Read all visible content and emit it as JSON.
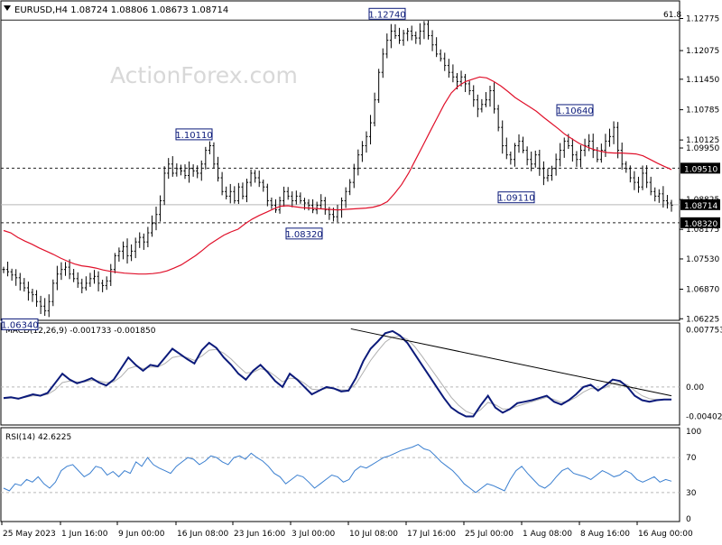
{
  "watermark": "ActionForex.com",
  "colors": {
    "candle": "#000000",
    "ma": "#e0102a",
    "macd_main": "#0b1a7a",
    "macd_signal": "#b0b0b0",
    "rsi": "#3a7fd0",
    "level_line": "#222222",
    "label_box": "#0b1a7a",
    "right_label_bg": "#000000",
    "right_label_text": "#ffffff"
  },
  "chart_data": [
    {
      "type": "candlestick",
      "name": "price",
      "title": "EURUSD,H4",
      "ohlc_header": [
        "1.08724",
        "1.08806",
        "1.08673",
        "1.08714"
      ],
      "ylim": [
        1.0625,
        1.131
      ],
      "y_ticks": [
        "1.12775",
        "1.12075",
        "1.11450",
        "1.10785",
        "1.10125",
        "1.09950",
        "1.08825",
        "1.08175",
        "1.07530",
        "1.06870",
        "1.06225"
      ],
      "fib_label": "61.8",
      "current_price": "1.08714",
      "levels": [
        {
          "value": 1.1274,
          "label": "1.12740",
          "style": "solid"
        },
        {
          "value": 1.0951,
          "label": "1.09510",
          "style": "dashed"
        },
        {
          "value": 1.0832,
          "label": "1.08320",
          "style": "dashed"
        }
      ],
      "annotations": [
        {
          "label": "1.06340",
          "value": 1.0634
        },
        {
          "label": "1.10110",
          "value": 1.1011
        },
        {
          "label": "1.08320",
          "value": 1.0832
        },
        {
          "label": "1.12740",
          "value": 1.1274
        },
        {
          "label": "1.09110",
          "value": 1.0911
        },
        {
          "label": "1.10640",
          "value": 1.1064
        }
      ],
      "close_path": [
        1.073,
        1.0725,
        1.0718,
        1.0712,
        1.07,
        1.069,
        1.068,
        1.0675,
        1.066,
        1.065,
        1.064,
        1.066,
        1.07,
        1.072,
        1.073,
        1.0735,
        1.072,
        1.071,
        1.07,
        1.069,
        1.07,
        1.071,
        1.0715,
        1.07,
        1.0695,
        1.0705,
        1.073,
        1.076,
        1.077,
        1.078,
        1.076,
        1.077,
        1.079,
        1.08,
        1.079,
        1.081,
        1.083,
        1.085,
        1.088,
        1.094,
        1.096,
        1.094,
        1.095,
        1.0945,
        1.0935,
        1.095,
        1.0945,
        1.094,
        1.096,
        1.099,
        1.1,
        1.096,
        1.093,
        1.09,
        1.089,
        1.09,
        1.088,
        1.091,
        1.089,
        1.092,
        1.094,
        1.093,
        1.092,
        1.091,
        1.088,
        1.087,
        1.086,
        1.088,
        1.09,
        1.089,
        1.088,
        1.089,
        1.088,
        1.0875,
        1.087,
        1.086,
        1.087,
        1.088,
        1.086,
        1.085,
        1.0845,
        1.086,
        1.088,
        1.09,
        1.092,
        1.095,
        1.098,
        1.1,
        1.102,
        1.105,
        1.11,
        1.116,
        1.12,
        1.123,
        1.125,
        1.124,
        1.123,
        1.1245,
        1.125,
        1.124,
        1.1235,
        1.125,
        1.1265,
        1.124,
        1.122,
        1.12,
        1.119,
        1.1175,
        1.116,
        1.115,
        1.114,
        1.115,
        1.1135,
        1.112,
        1.11,
        1.108,
        1.109,
        1.11,
        1.112,
        1.108,
        1.104,
        1.1,
        1.098,
        1.097,
        1.1,
        1.101,
        1.099,
        1.097,
        1.096,
        1.098,
        1.095,
        1.093,
        1.0935,
        1.095,
        1.097,
        1.099,
        1.101,
        1.1,
        1.098,
        1.097,
        1.099,
        1.1,
        1.101,
        1.099,
        1.097,
        1.099,
        1.101,
        1.102,
        1.104,
        1.099,
        1.096,
        1.095,
        1.093,
        1.092,
        1.091,
        1.094,
        1.092,
        1.09,
        1.089,
        1.0895,
        1.088,
        1.0875,
        1.087
      ],
      "ma_path": [
        1.0815,
        1.081,
        1.08,
        1.0792,
        1.0785,
        1.0777,
        1.077,
        1.0763,
        1.0755,
        1.0748,
        1.0742,
        1.0738,
        1.0736,
        1.0733,
        1.0729,
        1.0726,
        1.0724,
        1.0722,
        1.0721,
        1.072,
        1.072,
        1.0721,
        1.0723,
        1.0727,
        1.0733,
        1.074,
        1.075,
        1.076,
        1.0772,
        1.0785,
        1.0795,
        1.0805,
        1.0812,
        1.0818,
        1.083,
        1.084,
        1.0848,
        1.0855,
        1.0862,
        1.0868,
        1.0869,
        1.0867,
        1.0865,
        1.0864,
        1.0863,
        1.0862,
        1.0861,
        1.086,
        1.0861,
        1.0862,
        1.0863,
        1.0864,
        1.0866,
        1.087,
        1.0878,
        1.0895,
        1.0915,
        1.094,
        1.097,
        1.1,
        1.103,
        1.106,
        1.109,
        1.1115,
        1.113,
        1.114,
        1.1145,
        1.115,
        1.1148,
        1.114,
        1.113,
        1.1118,
        1.1105,
        1.1095,
        1.1085,
        1.1075,
        1.1062,
        1.105,
        1.1038,
        1.1025,
        1.1015,
        1.1005,
        1.0998,
        1.0992,
        1.0988,
        1.0985,
        1.0984,
        1.0984,
        1.0983,
        1.0982,
        1.0978,
        1.097,
        1.0962,
        1.0955,
        1.0948
      ],
      "x_labels": [
        "25 May 2023",
        "1 Jun 16:00",
        "9 Jun 00:00",
        "16 Jun 08:00",
        "23 Jun 16:00",
        "3 Jul 00:00",
        "10 Jul 08:00",
        "17 Jul 16:00",
        "25 Jul 00:00",
        "1 Aug 08:00",
        "8 Aug 16:00",
        "16 Aug 00:00"
      ]
    },
    {
      "type": "line",
      "name": "macd",
      "title": "MACD(12,26,9) -0.001733 -0.001850",
      "ylim": [
        -0.0048,
        0.0082
      ],
      "y_ticks": [
        "0.007753",
        "0.00",
        "-0.004027"
      ],
      "series": [
        {
          "name": "MACD",
          "values": [
            -0.0015,
            -0.0014,
            -0.0016,
            -0.0013,
            -0.001,
            -0.0012,
            -0.0008,
            0.0005,
            0.0018,
            0.001,
            0.0005,
            0.0008,
            0.0012,
            0.0006,
            0.0002,
            0.001,
            0.0025,
            0.004,
            0.003,
            0.0022,
            0.003,
            0.0028,
            0.004,
            0.0052,
            0.0045,
            0.0038,
            0.0032,
            0.005,
            0.006,
            0.0053,
            0.004,
            0.003,
            0.0018,
            0.001,
            0.0022,
            0.003,
            0.002,
            0.0008,
            0.0,
            0.0018,
            0.001,
            0.0,
            -0.001,
            -0.0005,
            0.0,
            -0.0002,
            -0.0006,
            -0.0005,
            0.0012,
            0.0035,
            0.0052,
            0.0062,
            0.0073,
            0.0076,
            0.007,
            0.006,
            0.0045,
            0.003,
            0.0015,
            0.0,
            -0.0015,
            -0.0028,
            -0.0035,
            -0.004,
            -0.004,
            -0.0025,
            -0.0012,
            -0.0028,
            -0.0035,
            -0.003,
            -0.0022,
            -0.002,
            -0.0018,
            -0.0015,
            -0.0012,
            -0.002,
            -0.0024,
            -0.0018,
            -0.001,
            0.0,
            0.0003,
            -0.0005,
            0.0002,
            0.001,
            0.0008,
            0.0,
            -0.0012,
            -0.0018,
            -0.002,
            -0.0018,
            -0.0017,
            -0.0017
          ]
        },
        {
          "name": "Signal",
          "values": [
            -0.0016,
            -0.0015,
            -0.0015,
            -0.0014,
            -0.0012,
            -0.0012,
            -0.001,
            -0.0004,
            0.0006,
            0.0008,
            0.0007,
            0.0007,
            0.0009,
            0.0008,
            0.0006,
            0.0007,
            0.0014,
            0.0025,
            0.0028,
            0.0025,
            0.0027,
            0.0027,
            0.0032,
            0.004,
            0.0042,
            0.004,
            0.0036,
            0.0042,
            0.005,
            0.0051,
            0.0046,
            0.0038,
            0.0028,
            0.0019,
            0.002,
            0.0025,
            0.0022,
            0.0015,
            0.0007,
            0.0012,
            0.0011,
            0.0005,
            -0.0003,
            -0.0004,
            -0.0002,
            -0.0002,
            -0.0004,
            -0.0004,
            0.0004,
            0.002,
            0.0036,
            0.0049,
            0.0061,
            0.0068,
            0.0069,
            0.0065,
            0.0055,
            0.0042,
            0.0028,
            0.0014,
            0.0,
            -0.0014,
            -0.0025,
            -0.0033,
            -0.0037,
            -0.0031,
            -0.0021,
            -0.0024,
            -0.003,
            -0.003,
            -0.0026,
            -0.0023,
            -0.002,
            -0.0017,
            -0.0014,
            -0.0017,
            -0.0021,
            -0.0019,
            -0.0014,
            -0.0007,
            -0.0002,
            -0.0003,
            -0.0001,
            0.0005,
            0.0006,
            0.0003,
            -0.0005,
            -0.0012,
            -0.0016,
            -0.0017,
            -0.0017,
            -0.0017
          ]
        }
      ],
      "trendline": [
        [
          0.52,
          0.0079
        ],
        [
          1.0,
          -0.0012
        ]
      ]
    },
    {
      "type": "line",
      "name": "rsi",
      "title": "RSI(14) 42.6225",
      "ylim": [
        0,
        100
      ],
      "y_ticks": [
        "100",
        "70",
        "30",
        "0"
      ],
      "guides": [
        70,
        30
      ],
      "series": [
        {
          "name": "RSI",
          "values": [
            35,
            32,
            40,
            38,
            45,
            42,
            48,
            40,
            35,
            42,
            55,
            60,
            62,
            55,
            48,
            52,
            60,
            58,
            50,
            54,
            48,
            55,
            52,
            65,
            60,
            70,
            62,
            58,
            55,
            52,
            60,
            65,
            70,
            68,
            62,
            66,
            72,
            70,
            65,
            62,
            70,
            72,
            68,
            75,
            70,
            66,
            60,
            52,
            48,
            40,
            45,
            50,
            48,
            42,
            35,
            40,
            45,
            50,
            48,
            42,
            45,
            55,
            60,
            58,
            62,
            66,
            70,
            72,
            75,
            78,
            80,
            82,
            85,
            80,
            78,
            72,
            65,
            60,
            55,
            48,
            40,
            35,
            30,
            35,
            40,
            38,
            35,
            32,
            45,
            55,
            60,
            52,
            45,
            38,
            35,
            40,
            48,
            55,
            58,
            52,
            50,
            48,
            45,
            50,
            55,
            52,
            48,
            50,
            55,
            52,
            45,
            42,
            45,
            48,
            42,
            45,
            43
          ]
        }
      ]
    }
  ]
}
